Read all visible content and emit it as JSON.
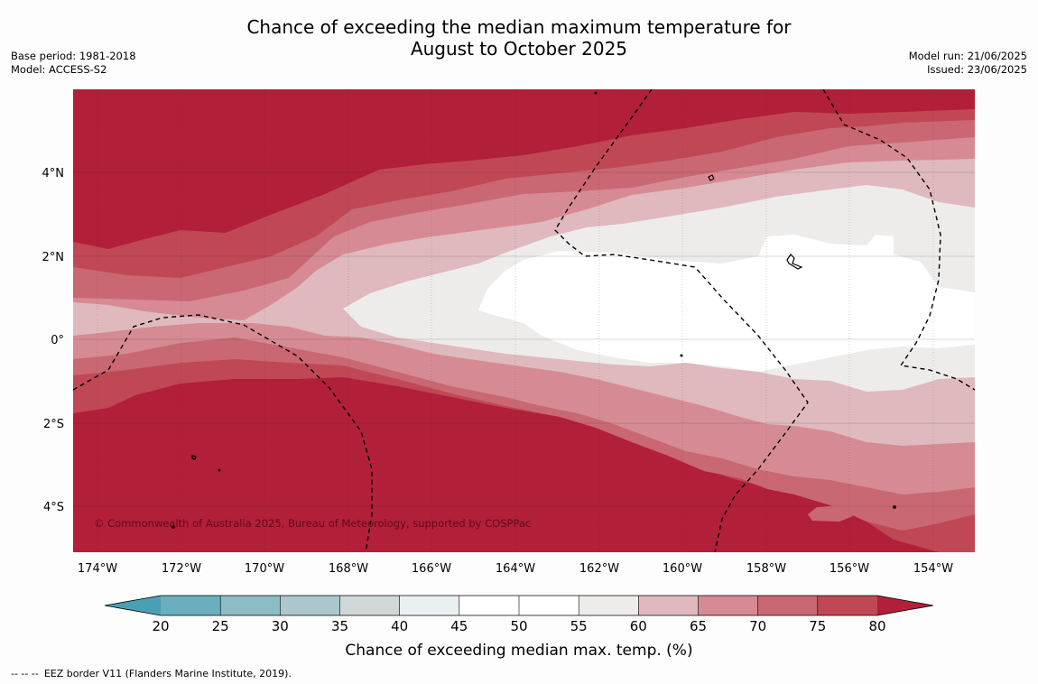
{
  "title": {
    "line1": "Chance of exceeding the median maximum temperature for",
    "line2": "August to October 2025"
  },
  "meta_left": {
    "base_period": "Base period: 1981-2018",
    "model": "Model: ACCESS-S2"
  },
  "meta_right": {
    "model_run": "Model run: 21/06/2025",
    "issued": "Issued: 23/06/2025"
  },
  "map": {
    "lon_labels": [
      "174°W",
      "172°W",
      "170°W",
      "168°W",
      "166°W",
      "164°W",
      "162°W",
      "160°W",
      "158°W",
      "156°W",
      "154°W"
    ],
    "lat_labels": [
      "4°N",
      "2°N",
      "0°",
      "2°S",
      "4°S"
    ],
    "copyright": "© Commonwealth of Australia 2025, Bureau of Meteorology, supported by COSPPac",
    "colors": {
      "c80": "#b21f38",
      "c75": "#c04855",
      "c70": "#c96872",
      "c65": "#d68b94",
      "c60": "#dfb9bd",
      "c55": "#eeeceb",
      "c50": "#ffffff"
    }
  },
  "colorbar": {
    "label": "Chance of exceeding median max. temp. (%)",
    "ticks": [
      "20",
      "25",
      "30",
      "35",
      "40",
      "45",
      "50",
      "55",
      "60",
      "65",
      "70",
      "75",
      "80"
    ],
    "colors": [
      "#4aa0b3",
      "#6aafbe",
      "#8cbcc6",
      "#abc7cc",
      "#d0d8d8",
      "#eaf0f1",
      "#ffffff",
      "#ffffff",
      "#eeeceb",
      "#dfb9bd",
      "#d68b94",
      "#c96872",
      "#c04855",
      "#b21f38"
    ]
  },
  "footnote": {
    "dash": "-- -- --",
    "text": "EEZ border V11 (Flanders Marine Institute, 2019)."
  }
}
